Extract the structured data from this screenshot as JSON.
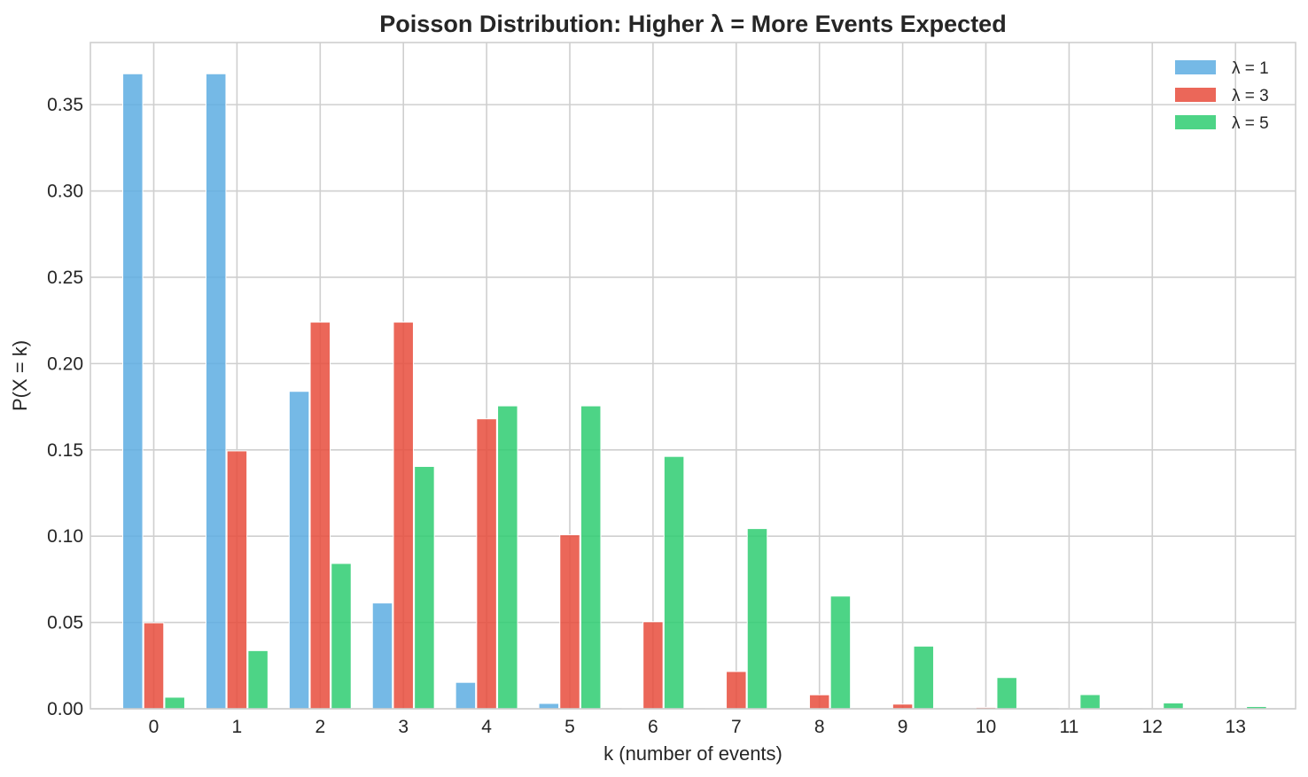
{
  "chart_data": {
    "type": "bar",
    "title": "Poisson Distribution: Higher λ = More Events Expected",
    "xlabel": "k (number of events)",
    "ylabel": "P(X = k)",
    "categories": [
      "0",
      "1",
      "2",
      "3",
      "4",
      "5",
      "6",
      "7",
      "8",
      "9",
      "10",
      "11",
      "12",
      "13"
    ],
    "ylim": [
      0,
      0.386
    ],
    "yticks": [
      0.0,
      0.05,
      0.1,
      0.15,
      0.2,
      0.25,
      0.3,
      0.35
    ],
    "ytick_labels": [
      "0.00",
      "0.05",
      "0.10",
      "0.15",
      "0.20",
      "0.25",
      "0.30",
      "0.35"
    ],
    "grid": true,
    "legend_position": "top-right",
    "series": [
      {
        "name": "λ = 1",
        "color": "#5dade2",
        "values": [
          0.3679,
          0.3679,
          0.1839,
          0.0613,
          0.0153,
          0.0031,
          0.0005,
          0.0001,
          0.0,
          0.0,
          0.0,
          0.0,
          0.0,
          0.0
        ]
      },
      {
        "name": "λ = 3",
        "color": "#e74c3c",
        "values": [
          0.0498,
          0.1494,
          0.224,
          0.224,
          0.168,
          0.1008,
          0.0504,
          0.0216,
          0.0081,
          0.0027,
          0.0008,
          0.0002,
          0.0001,
          0.0
        ]
      },
      {
        "name": "λ = 5",
        "color": "#2ecc71",
        "values": [
          0.0067,
          0.0337,
          0.0842,
          0.1404,
          0.1755,
          0.1755,
          0.1462,
          0.1044,
          0.0653,
          0.0363,
          0.0181,
          0.0082,
          0.0034,
          0.0013
        ]
      }
    ]
  }
}
